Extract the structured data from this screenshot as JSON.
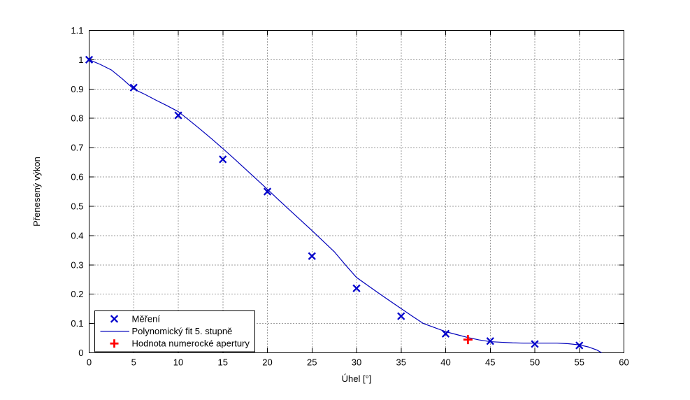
{
  "figure": {
    "background": "#ffffff"
  },
  "chart_data": {
    "type": "scatter",
    "title": "",
    "xlabel": "Úhel [°]",
    "ylabel": "Přenesený výkon",
    "xlim": [
      0,
      60
    ],
    "ylim": [
      0,
      1.1
    ],
    "xticks": [
      0,
      5,
      10,
      15,
      20,
      25,
      30,
      35,
      40,
      45,
      50,
      55,
      60
    ],
    "yticks": [
      0,
      0.1,
      0.2,
      0.3,
      0.4,
      0.5,
      0.6,
      0.7,
      0.8,
      0.9,
      1,
      1.1
    ],
    "grid": true,
    "grid_style": "dotted",
    "colors": {
      "measurement": "#0000cc",
      "fit_line": "#0000bb",
      "aperture": "#ff0000",
      "axis": "#000000",
      "background": "#ffffff"
    },
    "legend": {
      "position": "bottom-left",
      "entries": [
        {
          "label": "Měření",
          "marker": "x",
          "color": "#0000cc"
        },
        {
          "label": "Polynomický fit 5. stupně",
          "marker": "line",
          "color": "#0000bb"
        },
        {
          "label": "Hodnota numerocké apertury",
          "marker": "plus",
          "color": "#ff0000"
        }
      ]
    },
    "series": [
      {
        "name": "Měření",
        "type": "scatter",
        "marker": "x",
        "color": "#0000cc",
        "x": [
          0,
          5,
          10,
          15,
          20,
          25,
          30,
          35,
          40,
          45,
          50,
          55
        ],
        "y": [
          1.0,
          0.905,
          0.81,
          0.66,
          0.55,
          0.33,
          0.22,
          0.125,
          0.065,
          0.04,
          0.03,
          0.025
        ]
      },
      {
        "name": "Polynomický fit 5. stupně",
        "type": "line",
        "color": "#0000bb",
        "x": [
          0,
          1.25,
          2.5,
          3.75,
          5,
          6.25,
          7.5,
          8.75,
          10,
          11.25,
          12.5,
          13.75,
          15,
          16.25,
          17.5,
          18.75,
          20,
          21.25,
          22.5,
          23.75,
          25,
          26.25,
          27.5,
          28.75,
          30,
          31.25,
          32.5,
          33.75,
          35,
          36.25,
          37.5,
          38.75,
          40,
          41.25,
          42.5,
          43.75,
          45,
          46.25,
          47.5,
          48.75,
          50,
          51.25,
          52.5,
          53.75,
          55,
          56,
          57,
          57.5
        ],
        "y": [
          1.0,
          0.984,
          0.965,
          0.934,
          0.9,
          0.882,
          0.862,
          0.843,
          0.823,
          0.793,
          0.762,
          0.73,
          0.697,
          0.663,
          0.628,
          0.593,
          0.558,
          0.522,
          0.487,
          0.452,
          0.417,
          0.381,
          0.345,
          0.3,
          0.257,
          0.23,
          0.203,
          0.177,
          0.151,
          0.125,
          0.1,
          0.086,
          0.072,
          0.062,
          0.052,
          0.044,
          0.038,
          0.036,
          0.034,
          0.033,
          0.033,
          0.033,
          0.033,
          0.031,
          0.027,
          0.02,
          0.009,
          0.0
        ]
      },
      {
        "name": "Hodnota numerocké apertury",
        "type": "scatter",
        "marker": "plus",
        "color": "#ff0000",
        "x": [
          42.5
        ],
        "y": [
          0.045
        ]
      }
    ]
  }
}
